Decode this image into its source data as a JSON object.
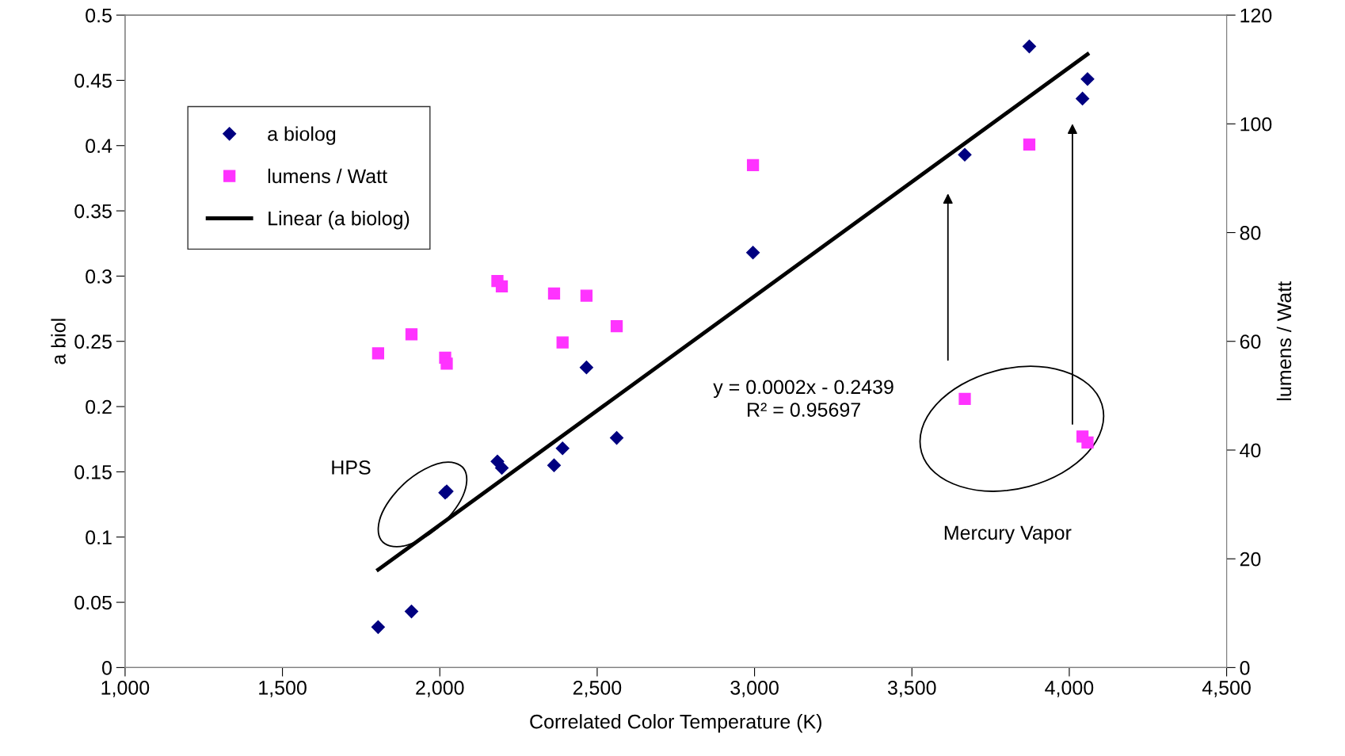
{
  "chart_data": {
    "type": "scatter",
    "xlabel": "Correlated Color Temperature (K)",
    "ylabel": "a biol",
    "y2label": "lumens / Watt",
    "x": [
      1804,
      1910,
      2017,
      2022,
      2183,
      2197,
      2363,
      2390,
      2466,
      2562,
      2995,
      3668,
      3873,
      4042,
      4058
    ],
    "series": [
      {
        "name": "a biolog",
        "marker": "diamond",
        "color": "#000080",
        "values": [
          0.031,
          0.043,
          0.134,
          0.135,
          0.158,
          0.153,
          0.155,
          0.168,
          0.23,
          0.176,
          0.318,
          0.393,
          0.476,
          0.436,
          0.451
        ]
      },
      {
        "name": "lumens / Watt",
        "marker": "square",
        "color": "#ff33ff",
        "axis": "y2",
        "values": [
          57.8,
          61.3,
          57.0,
          55.9,
          71.1,
          70.1,
          68.8,
          59.8,
          68.4,
          62.8,
          92.4,
          49.4,
          96.2,
          42.5,
          41.4
        ]
      },
      {
        "name": "Linear (a biolog)",
        "type": "line",
        "marker": "none",
        "line_style": "solid",
        "color": "#000000",
        "x": [
          1804,
          4058
        ],
        "values": [
          0.075,
          0.47
        ]
      }
    ],
    "xlim": [
      1000,
      4500
    ],
    "xticks": [
      {
        "value": 1000,
        "label": "1,000"
      },
      {
        "value": 1500,
        "label": "1,500"
      },
      {
        "value": 2000,
        "label": "2,000"
      },
      {
        "value": 2500,
        "label": "2,500"
      },
      {
        "value": 3000,
        "label": "3,000"
      },
      {
        "value": 3500,
        "label": "3,500"
      },
      {
        "value": 4000,
        "label": "4,000"
      },
      {
        "value": 4500,
        "label": "4,500"
      }
    ],
    "ylim": [
      0,
      0.5
    ],
    "yticks": [
      0,
      0.05,
      0.1,
      0.15,
      0.2,
      0.25,
      0.3,
      0.35,
      0.4,
      0.45,
      0.5
    ],
    "y2lim": [
      0,
      120
    ],
    "y2ticks": [
      0,
      20,
      40,
      60,
      80,
      100,
      120
    ],
    "annotations": [
      "y = 0.0002x - 0.2439\nR² = 0.95697",
      "HPS",
      "Mercury Vapor"
    ],
    "legend": "top left",
    "grid": false
  }
}
